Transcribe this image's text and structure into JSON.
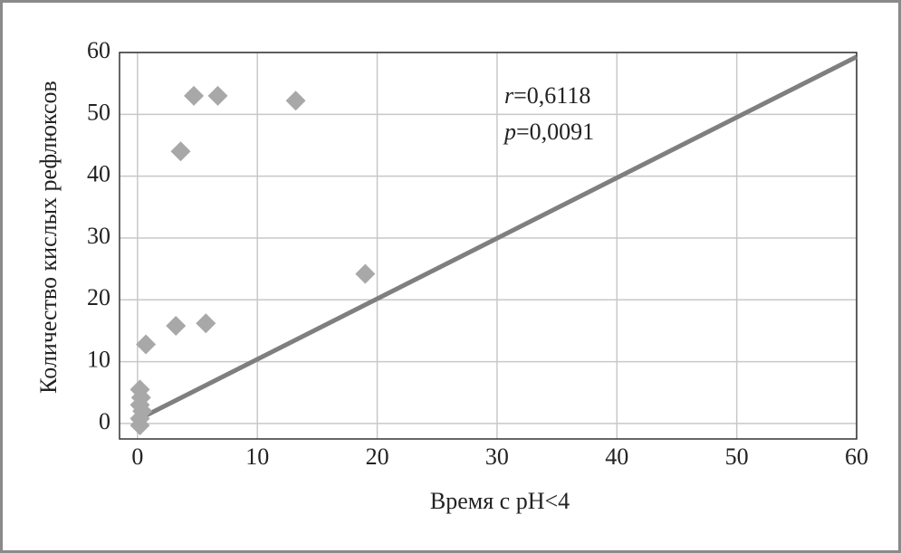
{
  "chart_data": {
    "type": "scatter",
    "xlabel": "Время с pH<4",
    "ylabel": "Количество кислых рефлюксов",
    "x": [
      0.2,
      0.3,
      0.2,
      0.4,
      0.2,
      0.2,
      0.7,
      3.2,
      3.6,
      4.7,
      5.7,
      6.7,
      13.2,
      19
    ],
    "values": [
      5.5,
      4.2,
      3,
      2,
      0.8,
      -0.3,
      12.8,
      15.8,
      44,
      53,
      16.2,
      53,
      52.2,
      24.2
    ],
    "color": "#a8a8a8",
    "trend_line": {
      "x": [
        0.3,
        60
      ],
      "values": [
        0.9,
        59.3
      ],
      "color": "#7f7f7f"
    },
    "annotations": [
      {
        "symbol": "r",
        "text": "=0,6118"
      },
      {
        "symbol": "p",
        "text": "=0,0091"
      }
    ],
    "xlim": [
      -1.5,
      60
    ],
    "ylim": [
      -2.5,
      60
    ],
    "xticks": [
      0,
      10,
      20,
      30,
      40,
      50,
      60
    ],
    "yticks": [
      0,
      10,
      20,
      30,
      40,
      50,
      60
    ],
    "grid": true
  }
}
